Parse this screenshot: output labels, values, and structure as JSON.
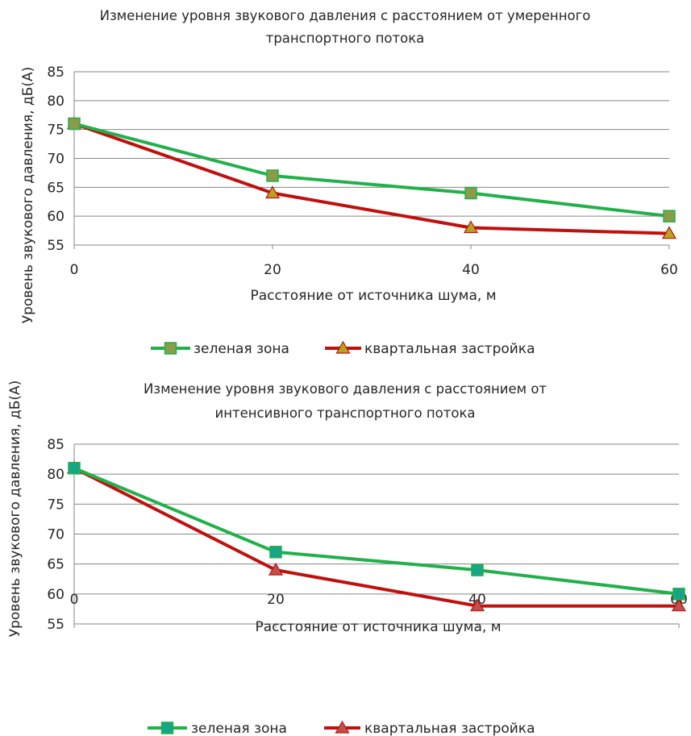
{
  "chart_data": [
    {
      "type": "line",
      "title": "Изменение уровня звукового давления с расстоянием от умеренного транспортного потока",
      "title_lines": [
        "Изменение уровня звукового давления с расстоянием от умеренного",
        "транспортного потока"
      ],
      "xlabel": "Расстояние от источника шума, м",
      "ylabel": "Уровень звукового давления, дБ(А)",
      "x": [
        0,
        20,
        40,
        60
      ],
      "xticks": [
        "0",
        "20",
        "40",
        "60"
      ],
      "xlim": [
        0,
        60
      ],
      "ylim": [
        55,
        85
      ],
      "yticks": [
        "55",
        "60",
        "65",
        "70",
        "75",
        "80",
        "85"
      ],
      "grid": true,
      "legend": "bottom",
      "series": [
        {
          "name": "зеленая зона",
          "values": [
            76,
            67,
            64,
            60
          ],
          "color": "#22b04b",
          "marker": "square",
          "marker_color": "#8c9b4a"
        },
        {
          "name": "квартальная застройка",
          "values": [
            76,
            64,
            58,
            57
          ],
          "color": "#c0100d",
          "marker": "triangle",
          "marker_color": "#b5a51e"
        }
      ]
    },
    {
      "type": "line",
      "title": "Изменение уровня звукового давления с расстоянием от интенсивного транспортного потока",
      "title_lines": [
        "Изменение уровня звукового давления с расстоянием от",
        "интенсивного транспортного потока"
      ],
      "xlabel": "Расстояние от источника шума, м",
      "ylabel": "Уровень звукового давления, дБ(А)",
      "x": [
        0,
        20,
        40,
        60
      ],
      "xticks": [
        "0",
        "20",
        "40",
        "60"
      ],
      "xlim": [
        0,
        60
      ],
      "ylim": [
        55,
        85
      ],
      "yticks": [
        "55",
        "60",
        "65",
        "70",
        "75",
        "80",
        "85"
      ],
      "grid": true,
      "legend": "bottom",
      "series": [
        {
          "name": "зеленая зона",
          "values": [
            81,
            67,
            64,
            60
          ],
          "color": "#22b04b",
          "marker": "square",
          "marker_color": "#17a589"
        },
        {
          "name": "квартальная застройка",
          "values": [
            81,
            64,
            58,
            58
          ],
          "color": "#c0100d",
          "marker": "triangle",
          "marker_color": "#c0504d"
        }
      ]
    }
  ]
}
